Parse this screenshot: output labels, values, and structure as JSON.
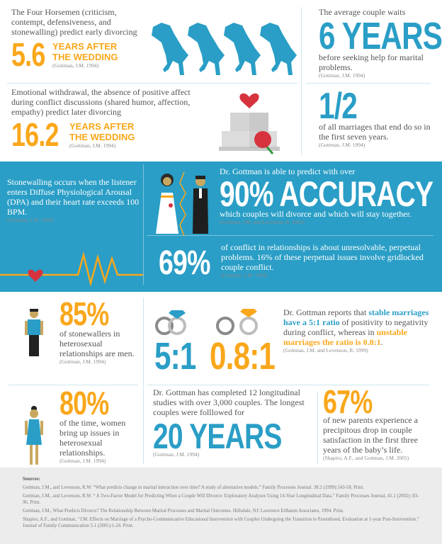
{
  "colors": {
    "blue": "#2a9ec6",
    "orange": "#f9a71b",
    "text": "#555555",
    "sources_bg": "#ececec"
  },
  "horsemen": {
    "text": "The Four Horsemen (criticism, contempt, defensiveness, and stonewalling) predict early divorcing",
    "stat": "5.6",
    "unit": "YEARS AFTER THE WEDDING",
    "cite": "(Gottman, J.M. 1994)",
    "icon": "horse-icon"
  },
  "wait": {
    "intro": "The average couple waits",
    "stat": "6 YEARS",
    "text": "before seeking help for marital problems.",
    "cite": "(Gottman, J.M. 1994)"
  },
  "withdrawal": {
    "text": "Emotional withdrawal, the absence of positive affect during conflict discussions (shared humor, affection, empathy) predict later divorcing",
    "stat": "16.2",
    "unit": "YEARS AFTER THE WEDDING",
    "cite": "(Gottman, J.M. 1994)",
    "icon": "wedding-cake-icon"
  },
  "half": {
    "stat": "1/2",
    "text": "of all marriages that end do so in the first seven years.",
    "cite": "(Gottman, J.M. 1994)"
  },
  "stonewalling": {
    "text": "Stonewalling occurs when the listener enters Diffuse Physiological Arousal (DPA) and their heart rate exceeds 100 BPM.",
    "cite": "(Gottman, J.M. 1994)",
    "icon": "heartbeat-icon"
  },
  "accuracy": {
    "intro": "Dr. Gottman is able to predict with over",
    "stat": "90% ACCURACY",
    "text": "which couples will divorce and which will stay together.",
    "cite": "(Gottman, J.M. and Levenson, R. 2002)",
    "icon": "bride-groom-icon"
  },
  "conflict": {
    "stat": "69%",
    "text": "of conflict in relationships is about unresolvable, perpetual problems. 16% of these perpetual issues involve gridlocked couple conflict.",
    "cite": "(Gottman, J.M. 1994)"
  },
  "men": {
    "stat": "85%",
    "text": "of stonewallers in heterosexual relationships are men.",
    "cite": "(Gottman, J.M. 1994)",
    "icon": "man-icon"
  },
  "ratio": {
    "stable_stat": "5:1",
    "unstable_stat": "0.8:1",
    "text_1": "Dr. Gottman reports that ",
    "text_2": "stable marriages have a 5:1 ratio",
    "text_3": " of positivity to negativity during conflict, whereas in ",
    "text_4": "unstable marriages the ratio is 0.8:1",
    "text_5": ".",
    "cite": "(Gottman, J.M. and Levenson, R. 1999)",
    "icon": "rings-icon"
  },
  "women": {
    "stat": "80%",
    "text": "of the time, women bring up issues in heterosexual relationships.",
    "cite": "(Gottman, J.M. 1994)",
    "icon": "woman-icon"
  },
  "studies": {
    "text": "Dr. Gottman has completed 12 longitudinal studies with over 3,000 couples. The longest couples were folllowed for",
    "stat": "20 YEARS",
    "cite": "(Gottman, J.M. 1994)"
  },
  "parents": {
    "stat": "67%",
    "text": "of new parents experience a precipitous drop in couple satisfaction in the first three years of the baby’s life.",
    "cite": "(Shapiro, A.F., and Gottman, J.M. 2005)"
  },
  "sources": {
    "title": "Sources:",
    "items": [
      "Gottman, J.M., and Levenson, R.W. “What predicts change in marital interaction over time? A study of alternative models.” Family Processes Journal. 38.2 (1999):143-58. Print.",
      "Gottman, J.M., and Levenson, R.W. “ A Two-Factor Model for Predicting When a Couple Will Divorce: Exploratory Analyses Using 14-Year Longitudinal Data.” Family Processes Journal, 41.1 (2002): 83-96. Print.",
      "Gottman, J.M., What Predicts Divorce? The Relationship Between Marital Processes and Marital Outcomes. Hillsdale, NJ: Lawrence Erlbaum Associates, 1994. Print.",
      "Shapiro, A.F., and Gottman, “J.M. Effects on Marriage of a Psycho-Communicative Educational Intervention with Couples Undergoing the Transition to Parenthood, Evaluation at 1-year Post-Intervention.” Journal of Family Communication 5.1 (2005):1-24. Print."
    ]
  }
}
